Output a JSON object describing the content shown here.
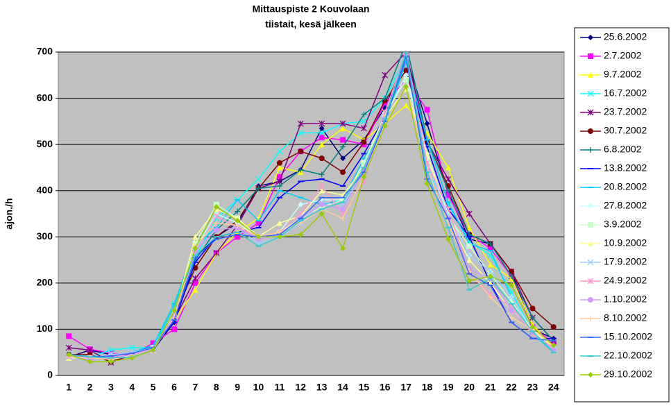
{
  "chart_data": {
    "type": "line",
    "title": [
      "Mittauspiste 2 Kouvolaan",
      "tiistait, kesä jälkeen"
    ],
    "y_label": "ajon./h",
    "categories": [
      1,
      2,
      3,
      4,
      5,
      6,
      7,
      8,
      9,
      10,
      11,
      12,
      13,
      14,
      15,
      16,
      17,
      18,
      19,
      20,
      21,
      22,
      23,
      24
    ],
    "ylim": [
      0,
      700
    ],
    "yticks": [
      0,
      100,
      200,
      300,
      400,
      500,
      600,
      700
    ],
    "grid": true,
    "series": [
      {
        "name": "25.6.2002",
        "color": "#000080",
        "marker": "diamond",
        "values": [
          40,
          55,
          45,
          40,
          55,
          115,
          255,
          300,
          330,
          410,
          420,
          445,
          535,
          470,
          510,
          580,
          690,
          545,
          395,
          295,
          285,
          225,
          100,
          80
        ]
      },
      {
        "name": "2.7.2002",
        "color": "#FF00FF",
        "marker": "square",
        "values": [
          85,
          57,
          48,
          45,
          70,
          100,
          200,
          265,
          300,
          330,
          430,
          485,
          515,
          510,
          500,
          590,
          640,
          575,
          390,
          305,
          275,
          215,
          105,
          70
        ]
      },
      {
        "name": "9.7.2002",
        "color": "#FFFF00",
        "marker": "triangle",
        "values": [
          38,
          40,
          35,
          42,
          60,
          120,
          185,
          265,
          310,
          340,
          450,
          440,
          500,
          535,
          510,
          545,
          585,
          525,
          450,
          320,
          240,
          210,
          110,
          60
        ]
      },
      {
        "name": "16.7.2002",
        "color": "#00FFFF",
        "marker": "x",
        "values": [
          45,
          40,
          55,
          60,
          60,
          155,
          255,
          340,
          380,
          425,
          485,
          525,
          525,
          545,
          550,
          600,
          690,
          440,
          370,
          290,
          260,
          180,
          95,
          55
        ]
      },
      {
        "name": "23.7.2002",
        "color": "#800080",
        "marker": "star",
        "values": [
          60,
          55,
          28,
          45,
          60,
          120,
          210,
          265,
          325,
          405,
          420,
          545,
          545,
          545,
          535,
          650,
          700,
          505,
          425,
          350,
          285,
          225,
          125,
          75
        ]
      },
      {
        "name": "30.7.2002",
        "color": "#800000",
        "marker": "circle",
        "values": [
          45,
          45,
          30,
          45,
          60,
          130,
          233,
          300,
          335,
          405,
          460,
          485,
          470,
          440,
          505,
          595,
          660,
          505,
          410,
          305,
          285,
          225,
          145,
          105
        ]
      },
      {
        "name": "6.8.2002",
        "color": "#008080",
        "marker": "plus",
        "values": [
          40,
          40,
          35,
          45,
          60,
          135,
          250,
          315,
          355,
          405,
          410,
          445,
          435,
          495,
          565,
          600,
          720,
          510,
          400,
          305,
          285,
          215,
          125,
          75
        ]
      },
      {
        "name": "13.8.2002",
        "color": "#0000FF",
        "marker": "dash",
        "values": [
          40,
          40,
          40,
          48,
          65,
          115,
          245,
          300,
          310,
          320,
          385,
          420,
          425,
          410,
          480,
          560,
          680,
          495,
          360,
          300,
          200,
          115,
          80,
          80
        ]
      },
      {
        "name": "20.8.2002",
        "color": "#00CCFF",
        "marker": "dash",
        "values": [
          42,
          42,
          38,
          50,
          65,
          155,
          280,
          320,
          380,
          335,
          400,
          385,
          370,
          380,
          470,
          545,
          680,
          510,
          375,
          285,
          270,
          170,
          90,
          50
        ]
      },
      {
        "name": "27.8.2002",
        "color": "#CCFFFF",
        "marker": "diamond",
        "values": [
          40,
          35,
          45,
          42,
          55,
          140,
          275,
          350,
          330,
          300,
          310,
          370,
          380,
          380,
          460,
          560,
          650,
          480,
          350,
          260,
          225,
          170,
          95,
          60
        ]
      },
      {
        "name": "3.9.2002",
        "color": "#CCFFCC",
        "marker": "square",
        "values": [
          38,
          38,
          38,
          45,
          60,
          135,
          285,
          370,
          340,
          300,
          310,
          340,
          365,
          380,
          460,
          565,
          640,
          470,
          345,
          280,
          220,
          160,
          100,
          55
        ]
      },
      {
        "name": "10.9.2002",
        "color": "#FFFF99",
        "marker": "triangle",
        "values": [
          38,
          38,
          35,
          45,
          55,
          130,
          300,
          360,
          340,
          300,
          330,
          345,
          400,
          390,
          450,
          560,
          620,
          480,
          340,
          250,
          200,
          140,
          100,
          60
        ]
      },
      {
        "name": "17.9.2002",
        "color": "#99CCFF",
        "marker": "x",
        "values": [
          40,
          35,
          45,
          50,
          60,
          140,
          270,
          345,
          320,
          285,
          300,
          330,
          375,
          370,
          440,
          550,
          690,
          460,
          345,
          260,
          225,
          170,
          90,
          55
        ]
      },
      {
        "name": "24.9.2002",
        "color": "#FF99CC",
        "marker": "star",
        "values": [
          42,
          38,
          40,
          45,
          58,
          130,
          265,
          345,
          320,
          300,
          310,
          350,
          410,
          350,
          420,
          570,
          700,
          460,
          360,
          225,
          175,
          150,
          90,
          60
        ]
      },
      {
        "name": "1.10.2002",
        "color": "#CC99FF",
        "marker": "circle",
        "values": [
          42,
          35,
          38,
          45,
          55,
          130,
          270,
          315,
          320,
          295,
          305,
          340,
          370,
          360,
          445,
          555,
          690,
          445,
          340,
          230,
          210,
          140,
          95,
          55
        ]
      },
      {
        "name": "8.10.2002",
        "color": "#FFCC99",
        "marker": "plus",
        "values": [
          40,
          38,
          35,
          42,
          55,
          125,
          280,
          330,
          325,
          300,
          310,
          330,
          360,
          340,
          430,
          545,
          625,
          450,
          330,
          225,
          170,
          125,
          100,
          65
        ]
      },
      {
        "name": "15.10.2002",
        "color": "#3366FF",
        "marker": "dash",
        "values": [
          45,
          40,
          42,
          48,
          60,
          120,
          255,
          295,
          305,
          300,
          305,
          340,
          385,
          385,
          440,
          550,
          690,
          425,
          340,
          220,
          195,
          115,
          80,
          75
        ]
      },
      {
        "name": "22.10.2002",
        "color": "#33CCCC",
        "marker": "dash",
        "values": [
          45,
          40,
          38,
          40,
          55,
          150,
          260,
          300,
          310,
          280,
          300,
          335,
          360,
          375,
          450,
          555,
          700,
          440,
          320,
          185,
          210,
          155,
          95,
          50
        ]
      },
      {
        "name": "29.10.2002",
        "color": "#99CC00",
        "marker": "diamond",
        "values": [
          45,
          30,
          30,
          38,
          55,
          140,
          275,
          365,
          335,
          300,
          300,
          305,
          350,
          275,
          430,
          540,
          625,
          415,
          295,
          205,
          215,
          195,
          105,
          65
        ]
      }
    ]
  }
}
